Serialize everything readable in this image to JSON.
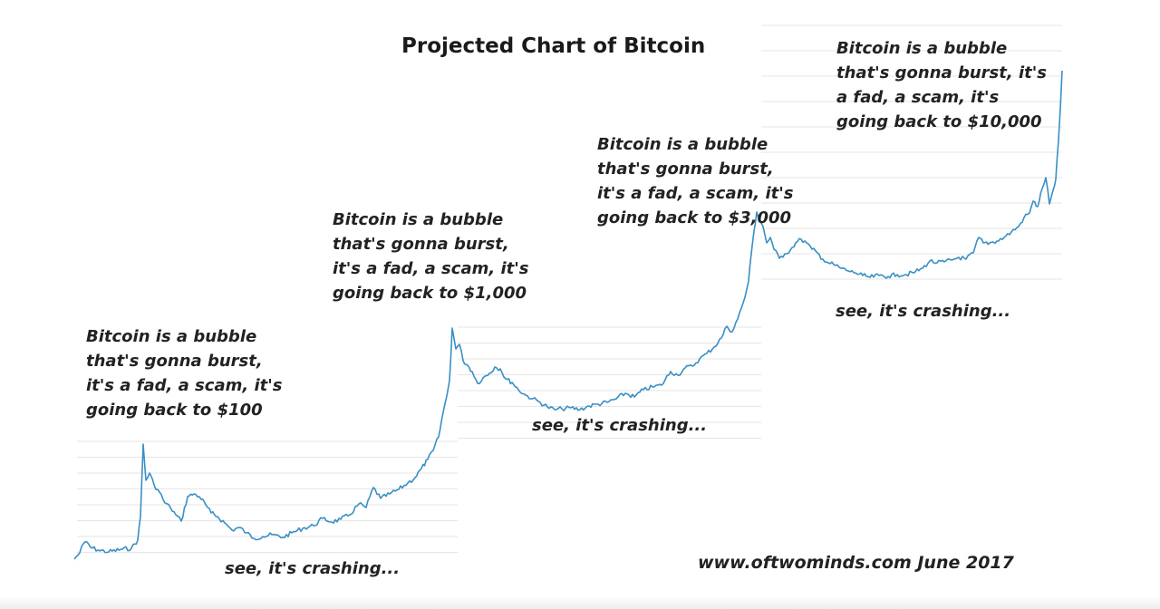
{
  "title": "Projected Chart of Bitcoin",
  "credit": "www.oftwominds.com  June 2017",
  "chart_data": {
    "type": "line",
    "title": "Projected Chart of Bitcoin",
    "xlabel": "",
    "ylabel": "",
    "grid": true,
    "line_color": "#3a8fc4",
    "grid_color": "#e6e6e6",
    "note": "Unlabeled axes; the same price pattern repeats four times, each rising higher (bubble, crash, bottom, rally).",
    "annotations": [
      {
        "lines": [
          "Bitcoin is a bubble",
          "that's gonna burst,",
          "it's a fad, a scam, it's",
          "going back to $100"
        ]
      },
      {
        "lines": [
          "Bitcoin is a bubble",
          "that's gonna burst,",
          "it's a fad, a scam, it's",
          "going back to $1,000"
        ]
      },
      {
        "lines": [
          "Bitcoin is a bubble",
          "that's gonna burst,",
          "it's a fad, a scam, it's",
          "going back to $3,000"
        ]
      },
      {
        "lines": [
          "Bitcoin is a bubble",
          "that's gonna burst, it's",
          "a fad, a scam, it's",
          "going back to $10,000"
        ]
      }
    ],
    "crash_labels": [
      "see, it's crashing...",
      "see, it's crashing...",
      "see, it's crashing..."
    ]
  }
}
